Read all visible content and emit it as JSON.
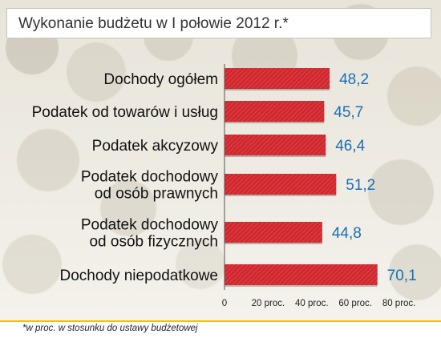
{
  "chart_data": {
    "type": "bar",
    "orientation": "horizontal",
    "title": "Wykonanie budżetu w I połowie 2012 r.*",
    "categories": [
      [
        "Dochody ogółem"
      ],
      [
        "Podatek od towarów i usług"
      ],
      [
        "Podatek akcyzowy"
      ],
      [
        "Podatek dochodowy",
        "od osób prawnych"
      ],
      [
        "Podatek dochodowy",
        "od osób fizycznych"
      ],
      [
        "Dochody niepodatkowe"
      ]
    ],
    "values": [
      48.2,
      45.7,
      46.4,
      51.2,
      44.8,
      70.1
    ],
    "value_labels": [
      "48,2",
      "45,7",
      "46,4",
      "51,2",
      "44,8",
      "70,1"
    ],
    "xlim": [
      0,
      80
    ],
    "ticks": [
      0,
      20,
      40,
      60,
      80
    ],
    "tick_labels": [
      "0",
      "20 proc.",
      "40 proc.",
      "60 proc.",
      "80 proc."
    ],
    "bar_color": "#d0282e",
    "value_color": "#1a6eb5",
    "footnote": "*w proc. w stosunku do ustawy budżetowej"
  }
}
